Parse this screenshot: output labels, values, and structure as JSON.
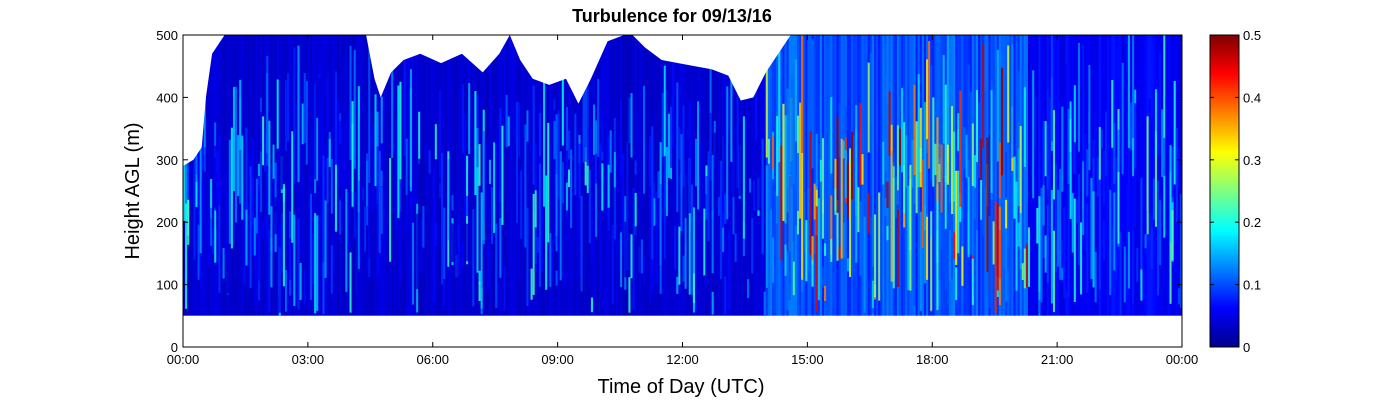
{
  "chart_data": {
    "type": "heatmap",
    "title": "Turbulence for 09/13/16",
    "xlabel": "Time of Day (UTC)",
    "ylabel": "Height AGL (m)",
    "x_unit": "hours",
    "xlim": [
      0,
      24
    ],
    "ylim": [
      0,
      500
    ],
    "x_ticks": [
      0,
      3,
      6,
      9,
      12,
      15,
      18,
      21,
      24
    ],
    "x_tick_labels": [
      "00:00",
      "03:00",
      "06:00",
      "09:00",
      "12:00",
      "15:00",
      "18:00",
      "21:00",
      "00:00"
    ],
    "y_ticks": [
      0,
      100,
      200,
      300,
      400,
      500
    ],
    "y_tick_labels": [
      "0",
      "100",
      "200",
      "300",
      "400",
      "500"
    ],
    "data_min_height": 50,
    "colorbar": {
      "colormap": "jet",
      "range": [
        0,
        0.5
      ],
      "ticks": [
        0,
        0.1,
        0.2,
        0.3,
        0.4,
        0.5
      ],
      "tick_labels": [
        "0",
        "0.1",
        "0.2",
        "0.3",
        "0.4",
        "0.5"
      ]
    },
    "data_top_profile": {
      "time_hours": [
        0,
        0.25,
        0.45,
        0.55,
        0.7,
        1.0,
        1.5,
        2.5,
        3.5,
        4.4,
        4.6,
        4.75,
        5.0,
        5.3,
        5.7,
        6.2,
        6.7,
        7.2,
        7.6,
        7.85,
        8.1,
        8.4,
        8.8,
        9.2,
        9.5,
        9.8,
        10.2,
        10.6,
        10.8,
        11.1,
        11.5,
        11.9,
        12.3,
        12.7,
        13.1,
        13.4,
        13.7,
        14.0,
        14.3,
        14.6,
        24
      ],
      "height_m": [
        290,
        300,
        320,
        400,
        470,
        500,
        500,
        500,
        500,
        500,
        430,
        400,
        440,
        460,
        470,
        455,
        470,
        440,
        470,
        500,
        460,
        430,
        420,
        430,
        390,
        430,
        490,
        500,
        500,
        480,
        460,
        455,
        450,
        445,
        435,
        395,
        400,
        440,
        470,
        500,
        500
      ]
    },
    "turbulence_regimes": [
      {
        "start_h": 0,
        "end_h": 14.0,
        "mean": 0.04,
        "peak": 0.22
      },
      {
        "start_h": 14.0,
        "end_h": 20.3,
        "mean": 0.1,
        "peak": 0.5
      },
      {
        "start_h": 20.3,
        "end_h": 24,
        "mean": 0.06,
        "peak": 0.25
      }
    ]
  }
}
